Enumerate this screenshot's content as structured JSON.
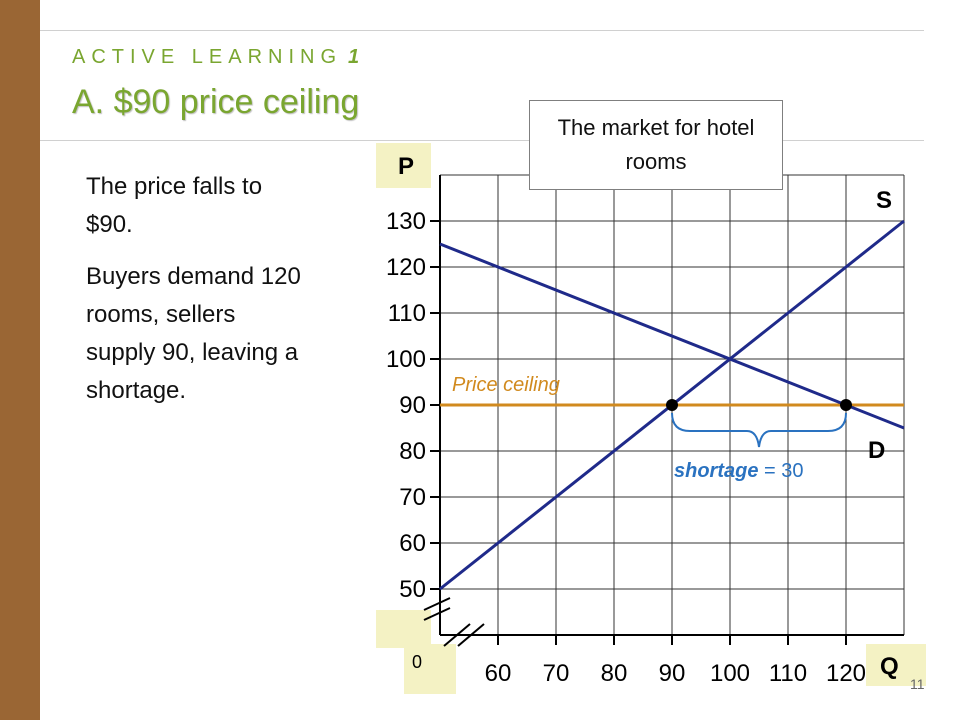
{
  "slide": {
    "kicker": "ACTIVE LEARNING",
    "kicker_number": "1",
    "title": "A.  $90 price ceiling",
    "body": [
      "The price falls to $90.",
      "Buyers demand 120 rooms, sellers supply 90, leaving a shortage."
    ],
    "page_number": "11"
  },
  "colors": {
    "sidebar": "#9a6634",
    "accent_green": "#7aa630",
    "curve_blue": "#1f2a8a",
    "ceiling_orange": "#d18a1e",
    "shortage_blue": "#2a72c0",
    "axis_highlight": "#f4f2c4"
  },
  "chart_data": {
    "type": "line",
    "title": "The market for hotel rooms",
    "xlabel": "Q",
    "ylabel": "P",
    "origin_label": "0",
    "xlim": [
      50,
      130
    ],
    "ylim": [
      40,
      140
    ],
    "x_ticks": [
      60,
      70,
      80,
      90,
      100,
      110,
      120
    ],
    "y_ticks": [
      50,
      60,
      70,
      80,
      90,
      100,
      110,
      120,
      130
    ],
    "grid": true,
    "axis_breaks": true,
    "series": [
      {
        "name": "S",
        "points": [
          [
            50,
            50
          ],
          [
            130,
            130
          ]
        ]
      },
      {
        "name": "D",
        "points": [
          [
            50,
            125
          ],
          [
            130,
            85
          ]
        ]
      }
    ],
    "price_ceiling": {
      "label": "Price ceiling",
      "value": 90
    },
    "points": [
      [
        90,
        90
      ],
      [
        120,
        90
      ]
    ],
    "shortage": {
      "label": "shortage",
      "text": " = 30",
      "from": 90,
      "to": 120
    }
  }
}
